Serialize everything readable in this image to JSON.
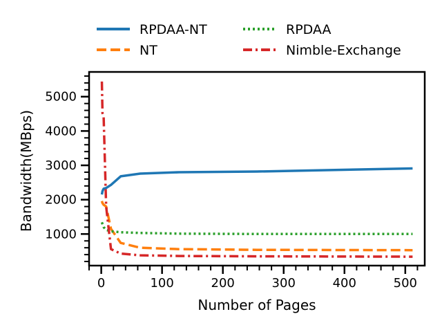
{
  "chart_data": {
    "type": "line",
    "title": "",
    "xlabel": "Number of Pages",
    "ylabel": "Bandwidth(MBps)",
    "xlim": [
      -20,
      532
    ],
    "ylim": [
      80,
      5720
    ],
    "x_ticks": [
      0,
      100,
      200,
      300,
      400,
      500
    ],
    "y_ticks": [
      1000,
      2000,
      3000,
      4000,
      5000
    ],
    "x_tick_labels": [
      "0",
      "100",
      "200",
      "300",
      "400",
      "500"
    ],
    "y_tick_labels": [
      "1000",
      "2000",
      "3000",
      "4000",
      "5000"
    ],
    "grid": false,
    "legend_position": "top, outside, two columns",
    "series": [
      {
        "name": "RPDAA-NT",
        "color": "#1f77b4",
        "style": "solid",
        "x": [
          1,
          2,
          4,
          8,
          16,
          32,
          64,
          128,
          256,
          512
        ],
        "y": [
          2150,
          2250,
          2320,
          2340,
          2430,
          2680,
          2760,
          2800,
          2820,
          2910
        ]
      },
      {
        "name": "NT",
        "color": "#ff7f0e",
        "style": "dashed",
        "x": [
          1,
          2,
          4,
          8,
          16,
          32,
          64,
          128,
          256,
          512
        ],
        "y": [
          1960,
          1900,
          1850,
          1800,
          1150,
          740,
          600,
          560,
          540,
          530
        ]
      },
      {
        "name": "RPDAA",
        "color": "#2ca02c",
        "style": "dotted",
        "x": [
          1,
          2,
          4,
          8,
          16,
          32,
          64,
          128,
          256,
          512
        ],
        "y": [
          1340,
          1290,
          1200,
          1120,
          1080,
          1050,
          1030,
          1010,
          1000,
          1000
        ]
      },
      {
        "name": "Nimble-Exchange",
        "color": "#d62728",
        "style": "dashdot",
        "x": [
          1,
          2,
          4,
          8,
          16,
          32,
          64,
          128,
          256,
          512
        ],
        "y": [
          5440,
          4520,
          4400,
          1800,
          560,
          430,
          380,
          360,
          350,
          340
        ]
      }
    ]
  }
}
